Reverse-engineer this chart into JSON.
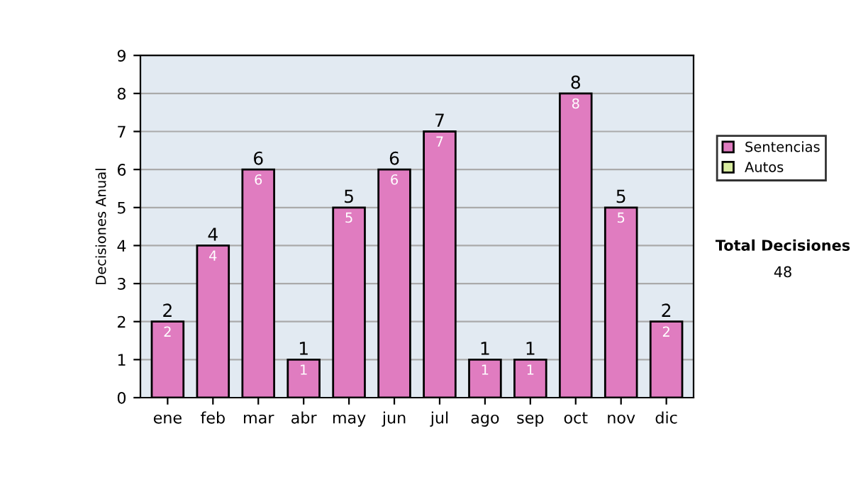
{
  "chart_data": {
    "type": "bar",
    "ylabel": "Decisiones Anual",
    "categories": [
      "ene",
      "feb",
      "mar",
      "abr",
      "may",
      "jun",
      "jul",
      "ago",
      "sep",
      "oct",
      "nov",
      "dic"
    ],
    "series": [
      {
        "name": "Sentencias",
        "color": "#e07cc0",
        "values": [
          2,
          4,
          6,
          1,
          5,
          6,
          7,
          1,
          1,
          8,
          5,
          2
        ]
      },
      {
        "name": "Autos",
        "color": "#d8eca0",
        "values": [
          null,
          null,
          null,
          null,
          null,
          null,
          null,
          null,
          null,
          null,
          null,
          null
        ]
      }
    ],
    "stacked": true,
    "data_labels": true,
    "totals": [
      "2",
      "4",
      "6",
      "1",
      "5",
      "6",
      "7",
      "1",
      "1",
      "8",
      "5",
      "2"
    ],
    "ylim": [
      0,
      9
    ],
    "yticks": [
      0,
      1,
      2,
      3,
      4,
      5,
      6,
      7,
      8,
      9
    ],
    "grid": "y",
    "legend": "right",
    "annotations": [
      "Total Decisiones",
      "48"
    ]
  }
}
